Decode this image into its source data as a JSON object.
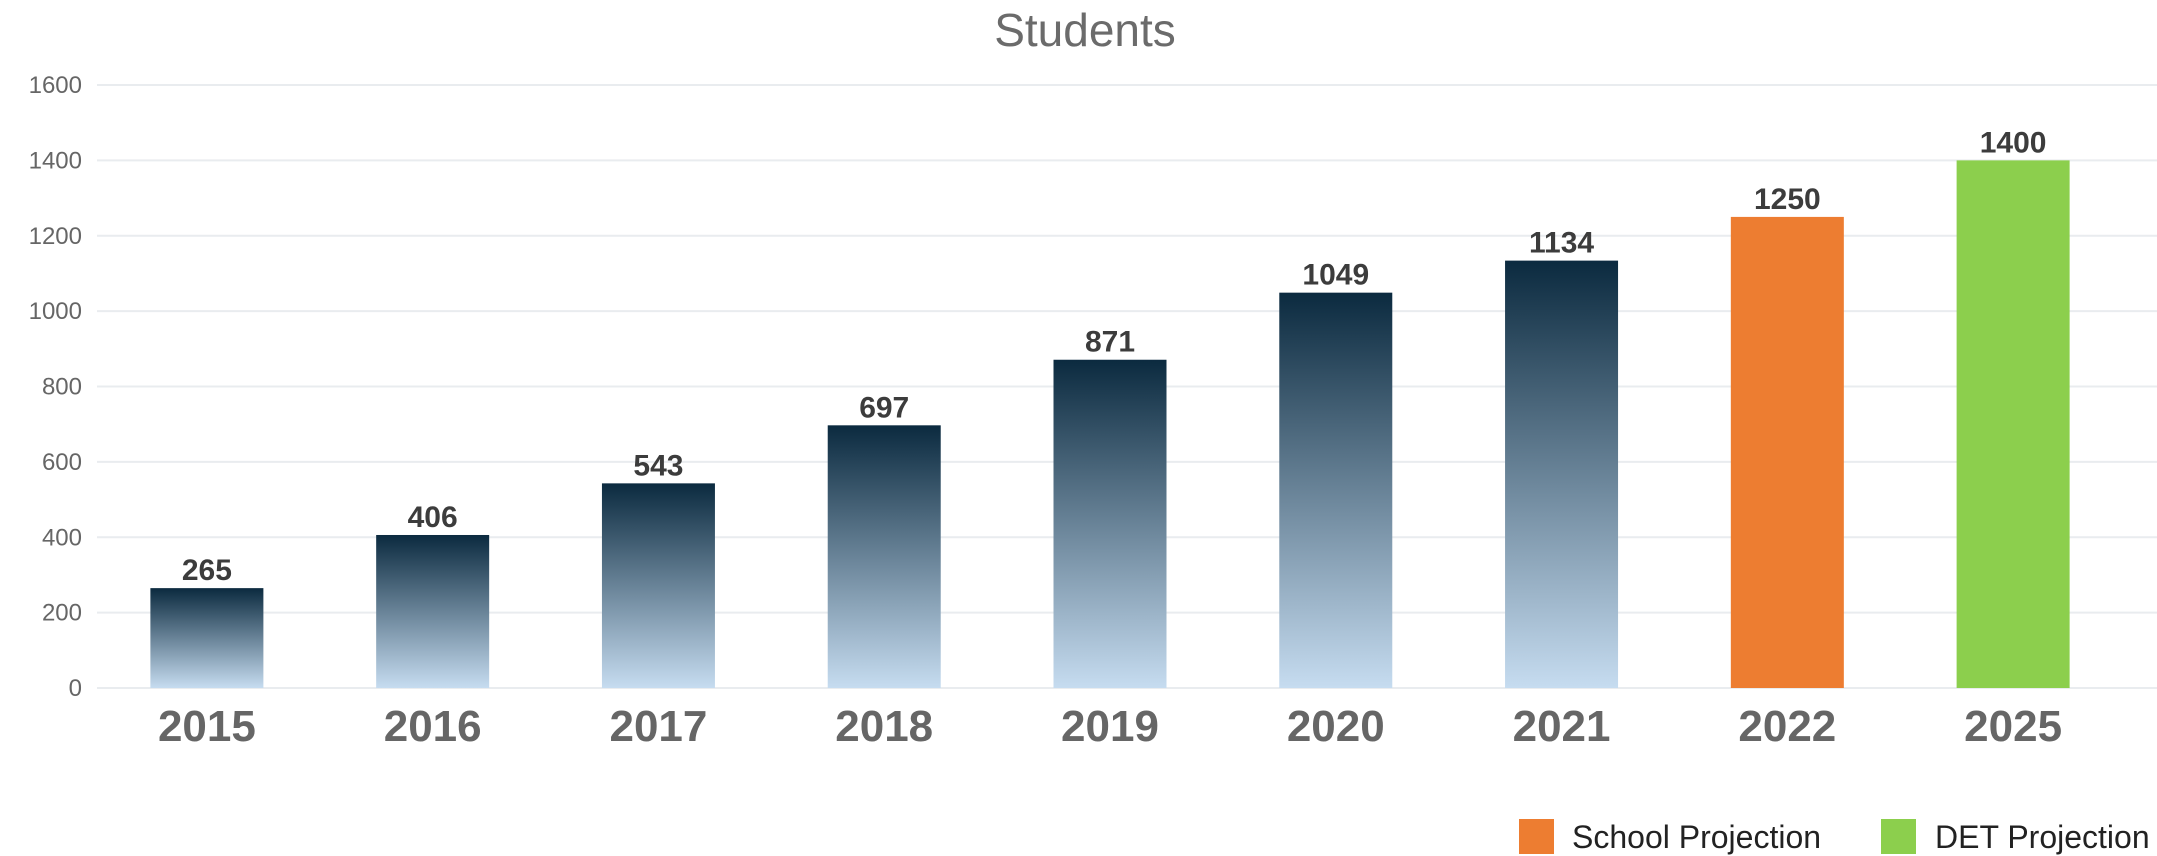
{
  "chart_data": {
    "type": "bar",
    "title": "Students",
    "xlabel": "",
    "ylabel": "",
    "categories": [
      "2015",
      "2016",
      "2017",
      "2018",
      "2019",
      "2020",
      "2021",
      "2022",
      "2025"
    ],
    "values": [
      265,
      406,
      543,
      697,
      871,
      1049,
      1134,
      1250,
      1400
    ],
    "data_labels": [
      "265",
      "406",
      "543",
      "697",
      "871",
      "1049",
      "1134",
      "1250",
      "1400"
    ],
    "bar_styles": [
      "actual",
      "actual",
      "actual",
      "actual",
      "actual",
      "actual",
      "actual",
      "school",
      "det"
    ],
    "ylim": [
      0,
      1600
    ],
    "yticks": [
      0,
      200,
      400,
      600,
      800,
      1000,
      1200,
      1400,
      1600
    ],
    "ytick_labels": [
      "0",
      "200",
      "400",
      "600",
      "800",
      "1000",
      "1200",
      "1400",
      "1600"
    ],
    "grid": true,
    "legend": {
      "placement": "bottom-right",
      "entries": [
        {
          "label": "School Projection",
          "color": "#ed7d31"
        },
        {
          "label": "DET Projection",
          "color": "#8ccf4d"
        }
      ]
    },
    "colors": {
      "actual_top": "#0b2a3f",
      "actual_bottom": "#c6dcf0",
      "school": "#ed7d31",
      "det": "#8ccf4d"
    }
  }
}
